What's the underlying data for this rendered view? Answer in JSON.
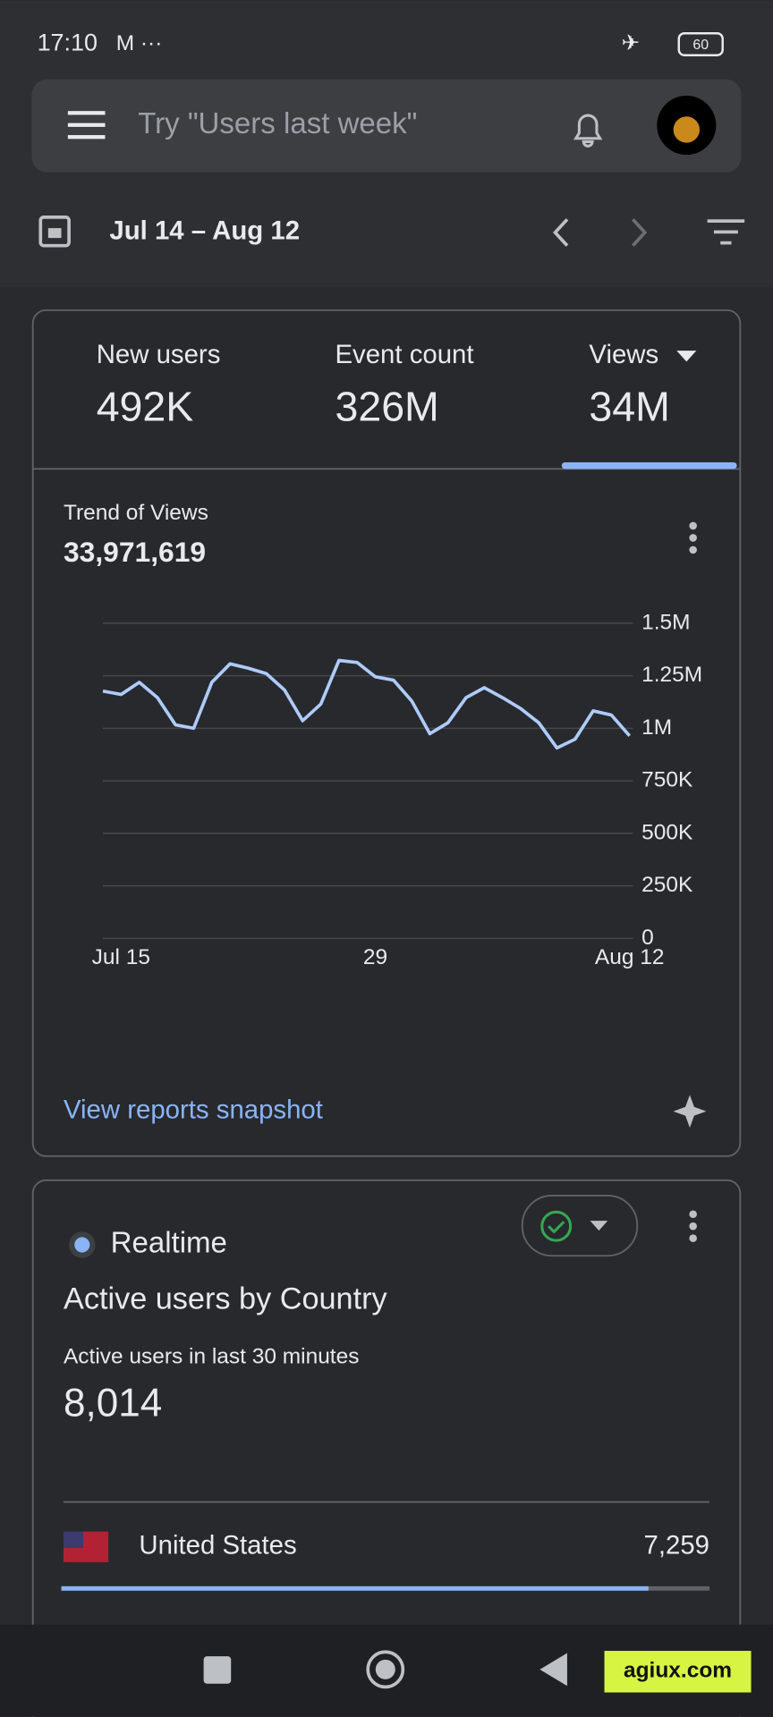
{
  "status_bar": {
    "time": "17:10",
    "battery": "60"
  },
  "search": {
    "placeholder": "Try \"Users last week\""
  },
  "date_range": {
    "label": "Jul 14 – Aug 12"
  },
  "metrics": [
    {
      "label": "New users",
      "value": "492K"
    },
    {
      "label": "Event count",
      "value": "326M"
    },
    {
      "label": "Views",
      "value": "34M"
    }
  ],
  "chart_data": {
    "type": "line",
    "title": "Trend of Views",
    "subtitle": "33,971,619",
    "categories": [
      null,
      "Jul 15",
      null,
      null,
      null,
      null,
      null,
      null,
      null,
      null,
      null,
      null,
      null,
      null,
      null,
      "29",
      null,
      null,
      null,
      null,
      null,
      null,
      null,
      null,
      null,
      null,
      null,
      null,
      null,
      "Aug 12"
    ],
    "values": [
      1177000,
      1161000,
      1219000,
      1146000,
      1016000,
      1000000,
      1219000,
      1307000,
      1286000,
      1260000,
      1182000,
      1036000,
      1115000,
      1323000,
      1313000,
      1245000,
      1229000,
      1130000,
      974000,
      1026000,
      1146000,
      1193000,
      1146000,
      1094000,
      1026000,
      906000,
      948000,
      1083000,
      1063000,
      964000
    ],
    "color": "#aecbfa",
    "ylim": [
      0,
      1500000
    ],
    "yticks": [
      0,
      {
        "value": 250000,
        "label": "250K"
      },
      {
        "value": 500000,
        "label": "500K"
      },
      {
        "value": 750000,
        "label": "750K"
      },
      {
        "value": 1000000,
        "label": "1M"
      },
      {
        "value": 1250000,
        "label": "1.25M"
      },
      {
        "value": 1500000,
        "label": "1.5M"
      }
    ],
    "grid": true
  },
  "snapshot_link": "View reports snapshot",
  "realtime": {
    "badge": "Realtime",
    "title": "Active users by Country",
    "subtitle": "Active users in last 30 minutes",
    "total": 8014,
    "total_label": "8,014",
    "rows": [
      {
        "country": "United States",
        "value": 7259,
        "value_label": "7,259"
      }
    ]
  },
  "watermark": "agiux.com"
}
